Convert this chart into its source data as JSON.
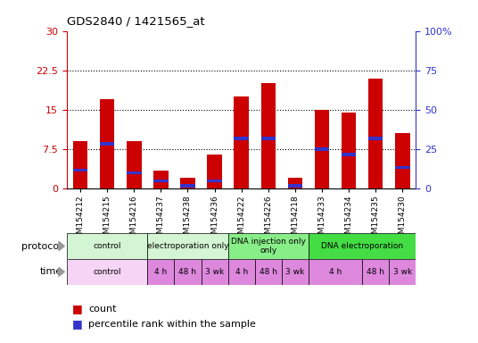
{
  "title": "GDS2840 / 1421565_at",
  "samples": [
    "GSM154212",
    "GSM154215",
    "GSM154216",
    "GSM154237",
    "GSM154238",
    "GSM154236",
    "GSM154222",
    "GSM154226",
    "GSM154218",
    "GSM154233",
    "GSM154234",
    "GSM154235",
    "GSM154230"
  ],
  "count_values": [
    9.0,
    17.0,
    9.0,
    3.5,
    2.0,
    6.5,
    17.5,
    20.0,
    2.0,
    15.0,
    14.5,
    21.0,
    10.5
  ],
  "percentile_values": [
    3.5,
    8.5,
    3.0,
    1.5,
    0.5,
    1.5,
    9.5,
    9.5,
    0.5,
    7.5,
    6.5,
    9.5,
    4.0
  ],
  "ylim_left": [
    0,
    30
  ],
  "ylim_right": [
    0,
    100
  ],
  "yticks_left": [
    0,
    7.5,
    15,
    22.5,
    30
  ],
  "yticks_right": [
    0,
    25,
    50,
    75,
    100
  ],
  "ytick_labels_left": [
    "0",
    "7.5",
    "15",
    "22.5",
    "30"
  ],
  "ytick_labels_right": [
    "0",
    "25",
    "50",
    "75",
    "100%"
  ],
  "bar_color": "#cc0000",
  "blue_color": "#3333cc",
  "bg_color": "#ffffff",
  "axis_color_left": "#cc0000",
  "axis_color_right": "#3333cc",
  "grid_color": "#000000",
  "proto_groups": [
    {
      "label": "control",
      "start": 0,
      "end": 3,
      "color": "#d4f5d4"
    },
    {
      "label": "electroporation only",
      "start": 3,
      "end": 6,
      "color": "#d4f5d4"
    },
    {
      "label": "DNA injection only\nonly",
      "start": 6,
      "end": 9,
      "color": "#88ee88"
    },
    {
      "label": "DNA electroporation",
      "start": 9,
      "end": 13,
      "color": "#44dd44"
    }
  ],
  "time_groups": [
    {
      "label": "control",
      "start": 0,
      "end": 3,
      "color": "#f5d4f5"
    },
    {
      "label": "4 h",
      "start": 3,
      "end": 4,
      "color": "#dd88dd"
    },
    {
      "label": "48 h",
      "start": 4,
      "end": 5,
      "color": "#dd88dd"
    },
    {
      "label": "3 wk",
      "start": 5,
      "end": 6,
      "color": "#dd88dd"
    },
    {
      "label": "4 h",
      "start": 6,
      "end": 7,
      "color": "#dd88dd"
    },
    {
      "label": "48 h",
      "start": 7,
      "end": 8,
      "color": "#dd88dd"
    },
    {
      "label": "3 wk",
      "start": 8,
      "end": 9,
      "color": "#dd88dd"
    },
    {
      "label": "4 h",
      "start": 9,
      "end": 11,
      "color": "#dd88dd"
    },
    {
      "label": "48 h",
      "start": 11,
      "end": 12,
      "color": "#dd88dd"
    },
    {
      "label": "3 wk",
      "start": 12,
      "end": 13,
      "color": "#dd88dd"
    }
  ],
  "bar_width": 0.55,
  "blue_bar_height": 0.6
}
